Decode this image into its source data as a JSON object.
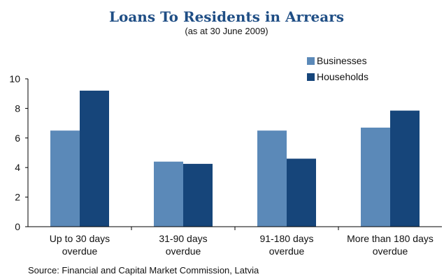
{
  "chart_data": {
    "type": "bar",
    "title": "Loans To Residents in Arrears",
    "subtitle": "(as at 30 June 2009)",
    "categories": [
      [
        "Up to 30 days",
        "overdue"
      ],
      [
        "31-90 days",
        "overdue"
      ],
      [
        "91-180 days",
        "overdue"
      ],
      [
        "More than 180 days",
        "overdue"
      ]
    ],
    "series": [
      {
        "name": "Businesses",
        "values": [
          6.5,
          4.4,
          6.5,
          6.7
        ],
        "color": "#5b89b8"
      },
      {
        "name": "Households",
        "values": [
          9.2,
          4.25,
          4.6,
          7.85
        ],
        "color": "#16457a"
      }
    ],
    "ylim": [
      0,
      10
    ],
    "yticks": [
      0,
      2,
      4,
      6,
      8,
      10
    ],
    "xlabel": "",
    "ylabel": "",
    "grid": false,
    "legend_position": "top-right",
    "title_color": "#1f4e85",
    "source": "Source: Financial and Capital Market Commission, Latvia"
  }
}
